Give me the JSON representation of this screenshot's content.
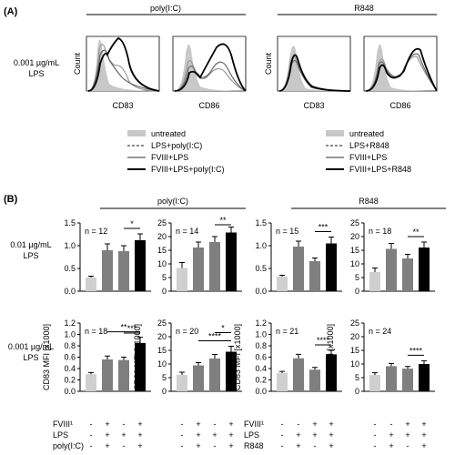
{
  "figure": {
    "panel_a": "(A)",
    "panel_b": "(B)"
  },
  "panel_a": {
    "groups": [
      "poly(I:C)",
      "R848"
    ],
    "row_label": [
      "0.001 µg/mL",
      "LPS"
    ],
    "y_label": "Count",
    "markers": [
      "CD83",
      "CD86",
      "CD83",
      "CD86"
    ],
    "legend_left": [
      "untreated",
      "LPS+poly(I:C)",
      "FVIII+LPS",
      "FVIII+LPS+poly(I:C)"
    ],
    "legend_right": [
      "untreated",
      "LPS+R848",
      "FVIII+LPS",
      "FVIII+LPS+R848"
    ]
  },
  "panel_b": {
    "groups": [
      "poly(I:C)",
      "R848"
    ],
    "row_labels": [
      [
        "0.01 µg/mL",
        "LPS"
      ],
      [
        "0.001 µg/mL",
        "LPS"
      ]
    ],
    "bottom_rows_left": [
      "FVIII¹",
      "LPS",
      "poly(I:C)"
    ],
    "bottom_rows_right": [
      "FVIII¹",
      "LPS",
      "R848"
    ],
    "signs_left": [
      [
        "-",
        "+",
        "-",
        "+"
      ],
      [
        "-",
        "+",
        "+",
        "+"
      ],
      [
        "-",
        "+",
        "-",
        "+"
      ]
    ],
    "signs_right": [
      [
        "-",
        "-",
        "+",
        "+"
      ],
      [
        "-",
        "+",
        "+",
        "+"
      ],
      [
        "-",
        "+",
        "-",
        "+"
      ]
    ]
  },
  "chart_data": [
    {
      "type": "bar",
      "id": "b1",
      "ylabel": "",
      "ylim": [
        0,
        1.5
      ],
      "ticks": [
        "0.0",
        "0.5",
        "1.0",
        "1.5"
      ],
      "n": "n = 12",
      "values": [
        0.3,
        0.9,
        0.88,
        1.12
      ],
      "errors": [
        0.03,
        0.14,
        0.12,
        0.14
      ],
      "colors": [
        "#cfcfcf",
        "#7f7f7f",
        "#7f7f7f",
        "#000000"
      ],
      "sig": [
        {
          "a": 2,
          "b": 3,
          "label": "*"
        }
      ]
    },
    {
      "type": "bar",
      "id": "b2",
      "ylabel": "",
      "ylim": [
        0,
        25
      ],
      "ticks": [
        "0",
        "5",
        "10",
        "15",
        "20",
        "25"
      ],
      "n": "n = 14",
      "values": [
        8.5,
        16,
        18,
        21.5
      ],
      "errors": [
        2,
        2,
        2,
        2
      ],
      "colors": [
        "#cfcfcf",
        "#7f7f7f",
        "#7f7f7f",
        "#000000"
      ],
      "sig": [
        {
          "a": 2,
          "b": 3,
          "label": "**"
        }
      ]
    },
    {
      "type": "bar",
      "id": "b3",
      "ylabel": "",
      "ylim": [
        0,
        1.5
      ],
      "ticks": [
        "0.0",
        "0.5",
        "1.0",
        "1.5"
      ],
      "n": "n = 15",
      "values": [
        0.32,
        0.98,
        0.66,
        1.05
      ],
      "errors": [
        0.03,
        0.12,
        0.07,
        0.14
      ],
      "colors": [
        "#cfcfcf",
        "#7f7f7f",
        "#7f7f7f",
        "#000000"
      ],
      "sig": [
        {
          "a": 2,
          "b": 3,
          "label": "***"
        }
      ]
    },
    {
      "type": "bar",
      "id": "b4",
      "ylabel": "",
      "ylim": [
        0,
        25
      ],
      "ticks": [
        "0",
        "5",
        "10",
        "15",
        "20",
        "25"
      ],
      "n": "n = 18",
      "values": [
        7,
        15.5,
        12,
        16
      ],
      "errors": [
        1.5,
        2,
        1.5,
        2
      ],
      "colors": [
        "#cfcfcf",
        "#7f7f7f",
        "#7f7f7f",
        "#000000"
      ],
      "sig": [
        {
          "a": 2,
          "b": 3,
          "label": "**"
        }
      ]
    },
    {
      "type": "bar",
      "id": "b5",
      "ylabel": "CD83 MFI [x1000]",
      "ylim": [
        0,
        1.2
      ],
      "ticks": [
        "0.0",
        "0.2",
        "0.4",
        "0.6",
        "0.8",
        "1.0",
        "1.2"
      ],
      "n": "n = 18",
      "values": [
        0.3,
        0.56,
        0.55,
        0.85
      ],
      "errors": [
        0.03,
        0.06,
        0.05,
        0.1
      ],
      "colors": [
        "#cfcfcf",
        "#7f7f7f",
        "#7f7f7f",
        "#000000"
      ],
      "sig": [
        {
          "a": 1,
          "b": 3,
          "label": "**"
        },
        {
          "a": 2,
          "b": 3,
          "label": "***"
        }
      ]
    },
    {
      "type": "bar",
      "id": "b6",
      "ylabel": "CD86 MFI [x1000]",
      "ylim": [
        0,
        25
      ],
      "ticks": [
        "0",
        "5",
        "10",
        "15",
        "20",
        "25"
      ],
      "n": "n = 20",
      "values": [
        6,
        9.5,
        12,
        14.5
      ],
      "errors": [
        1,
        1,
        1.5,
        2
      ],
      "colors": [
        "#cfcfcf",
        "#7f7f7f",
        "#7f7f7f",
        "#000000"
      ],
      "sig": [
        {
          "a": 1,
          "b": 3,
          "label": "****"
        },
        {
          "a": 2,
          "b": 3,
          "label": "*"
        }
      ]
    },
    {
      "type": "bar",
      "id": "b7",
      "ylabel": "CD83 MFI [x1000]",
      "ylim": [
        0,
        1.2
      ],
      "ticks": [
        "0.0",
        "0.2",
        "0.4",
        "0.6",
        "0.8",
        "1.0",
        "1.2"
      ],
      "n": "n = 21",
      "values": [
        0.32,
        0.58,
        0.38,
        0.65
      ],
      "errors": [
        0.03,
        0.07,
        0.04,
        0.07
      ],
      "colors": [
        "#cfcfcf",
        "#7f7f7f",
        "#7f7f7f",
        "#000000"
      ],
      "sig": [
        {
          "a": 2,
          "b": 3,
          "label": "****"
        }
      ]
    },
    {
      "type": "bar",
      "id": "b8",
      "ylabel": "CD86 MFI [x1000]",
      "ylim": [
        0,
        25
      ],
      "ticks": [
        "0",
        "5",
        "10",
        "15",
        "20",
        "25"
      ],
      "n": "n = 24",
      "values": [
        6,
        9.2,
        8.3,
        10
      ],
      "errors": [
        0.8,
        1,
        0.8,
        1.2
      ],
      "colors": [
        "#cfcfcf",
        "#7f7f7f",
        "#7f7f7f",
        "#000000"
      ],
      "sig": [
        {
          "a": 2,
          "b": 3,
          "label": "****"
        }
      ]
    }
  ]
}
